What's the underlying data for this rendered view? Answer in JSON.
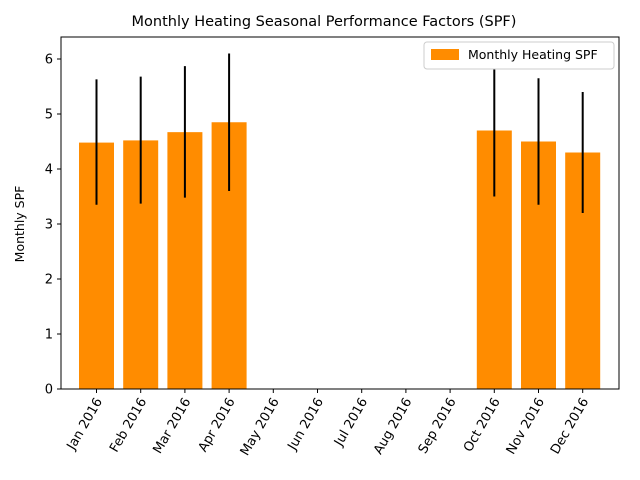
{
  "chart_data": {
    "type": "bar",
    "title": "Monthly Heating Seasonal Performance Factors (SPF)",
    "xlabel": "",
    "ylabel": "Monthly SPF",
    "ylim": [
      0,
      6.4
    ],
    "yticks": [
      0,
      1,
      2,
      3,
      4,
      5,
      6
    ],
    "categories": [
      "Jan 2016",
      "Feb 2016",
      "Mar 2016",
      "Apr 2016",
      "May 2016",
      "Jun 2016",
      "Jul 2016",
      "Aug 2016",
      "Sep 2016",
      "Oct 2016",
      "Nov 2016",
      "Dec 2016"
    ],
    "series": [
      {
        "name": "Monthly Heating SPF",
        "color": "#ff8c00",
        "values": [
          4.48,
          4.52,
          4.67,
          4.85,
          0,
          0,
          0,
          0,
          0,
          4.7,
          4.5,
          4.3
        ],
        "error_low": [
          3.35,
          3.37,
          3.48,
          3.6,
          null,
          null,
          null,
          null,
          null,
          3.5,
          3.35,
          3.2
        ],
        "error_high": [
          5.63,
          5.68,
          5.87,
          6.1,
          null,
          null,
          null,
          null,
          null,
          5.9,
          5.65,
          5.4
        ]
      }
    ],
    "legend": {
      "position": "top-right",
      "label": "Monthly Heating SPF"
    },
    "tick_rotation": 60,
    "grid": false
  }
}
